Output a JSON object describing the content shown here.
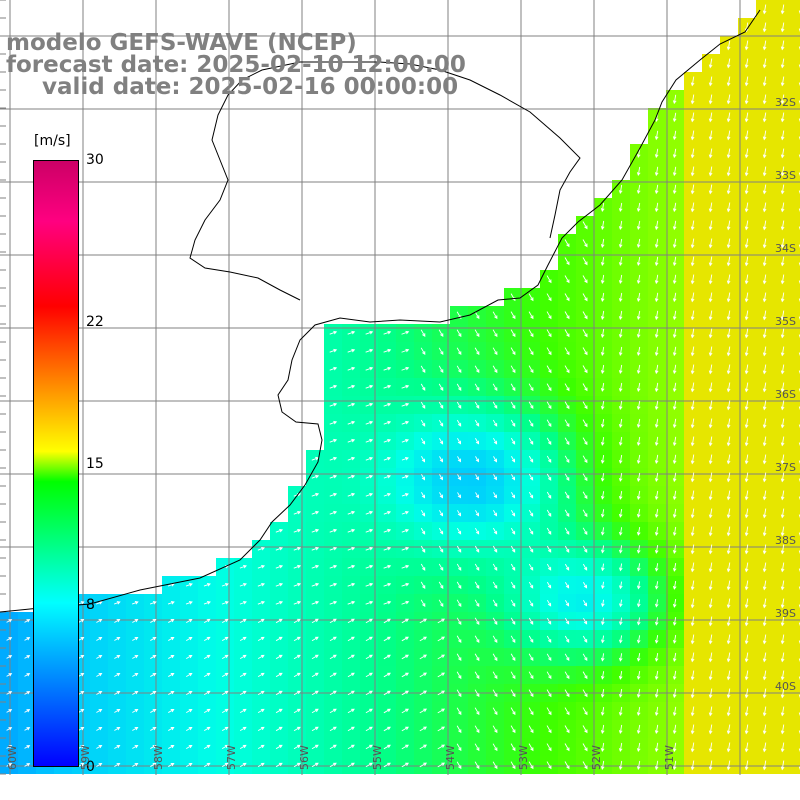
{
  "title": {
    "line1": "modelo GEFS-WAVE (NCEP)",
    "line2": "forecast date: 2025-02-10 12:00:00",
    "line3": "valid date: 2025-02-16 00:00:00"
  },
  "colorbar": {
    "unit": "[m/s]",
    "ticks": [
      {
        "value": 30,
        "label": "30"
      },
      {
        "value": 22,
        "label": "22"
      },
      {
        "value": 15,
        "label": "15"
      },
      {
        "value": 8,
        "label": "8"
      },
      {
        "value": 0,
        "label": "0"
      }
    ],
    "range": [
      0,
      30
    ],
    "colors": [
      "#0000ff",
      "#00a0ff",
      "#00ffff",
      "#00ff00",
      "#ffff00",
      "#ff8000",
      "#ff0000",
      "#ff0080",
      "#cc0066"
    ]
  },
  "lat_labels": [
    "32S",
    "33S",
    "34S",
    "35S",
    "36S",
    "37S",
    "38S",
    "39S",
    "40S"
  ],
  "lon_labels": [
    "60W",
    "59W",
    "58W",
    "57W",
    "56W",
    "55W",
    "54W",
    "53W",
    "52W",
    "51W"
  ],
  "colors": {
    "land": "#ffffff",
    "coast": "#000000",
    "grid": "#808080",
    "arrows": "#ffffff",
    "title": "#808080"
  }
}
